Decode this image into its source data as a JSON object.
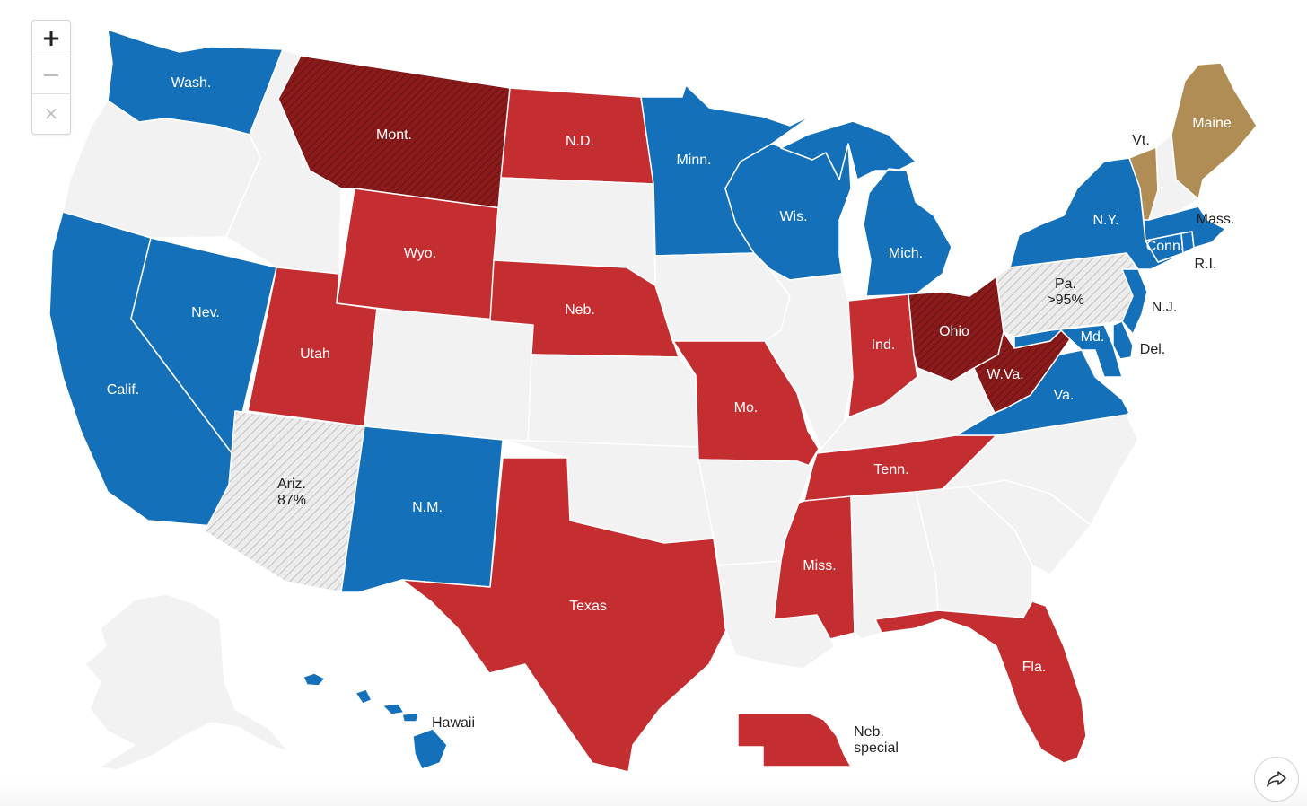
{
  "colors": {
    "dem": "#1570ba",
    "rep": "#c42e31",
    "rep_flip": "#8b1b1b",
    "ind": "#b08d55",
    "no_race": "#f2f2f2",
    "pending": "#dcdcdc",
    "label_light": "#ffffff",
    "label_dark": "#222222"
  },
  "controls": {
    "zoom_in": "+",
    "zoom_out": "−",
    "reset": "×",
    "share_icon": "share-arrow-icon"
  },
  "states": {
    "wa": {
      "label": "Wash.",
      "status": "dem"
    },
    "or": {
      "label": "",
      "status": "none"
    },
    "ca": {
      "label": "Calif.",
      "status": "dem"
    },
    "nv": {
      "label": "Nev.",
      "status": "dem"
    },
    "id": {
      "label": "",
      "status": "none"
    },
    "mt": {
      "label": "Mont.",
      "status": "rep_flip"
    },
    "wy": {
      "label": "Wyo.",
      "status": "rep"
    },
    "ut": {
      "label": "Utah",
      "status": "rep"
    },
    "az": {
      "label": "Ariz.",
      "status": "pending",
      "reporting": "87%"
    },
    "nm": {
      "label": "N.M.",
      "status": "dem"
    },
    "co": {
      "label": "",
      "status": "none"
    },
    "nd": {
      "label": "N.D.",
      "status": "rep"
    },
    "sd": {
      "label": "",
      "status": "none"
    },
    "ne": {
      "label": "Neb.",
      "status": "rep"
    },
    "ks": {
      "label": "",
      "status": "none"
    },
    "ok": {
      "label": "",
      "status": "none"
    },
    "tx": {
      "label": "Texas",
      "status": "rep"
    },
    "mn": {
      "label": "Minn.",
      "status": "dem"
    },
    "ia": {
      "label": "",
      "status": "none"
    },
    "mo": {
      "label": "Mo.",
      "status": "rep"
    },
    "ar": {
      "label": "",
      "status": "none"
    },
    "la": {
      "label": "",
      "status": "none"
    },
    "wi": {
      "label": "Wis.",
      "status": "dem"
    },
    "il": {
      "label": "",
      "status": "none"
    },
    "mi": {
      "label": "Mich.",
      "status": "dem"
    },
    "in": {
      "label": "Ind.",
      "status": "rep"
    },
    "oh": {
      "label": "Ohio",
      "status": "rep_flip"
    },
    "ky": {
      "label": "",
      "status": "none"
    },
    "tn": {
      "label": "Tenn.",
      "status": "rep"
    },
    "ms": {
      "label": "Miss.",
      "status": "rep"
    },
    "al": {
      "label": "",
      "status": "none"
    },
    "ga": {
      "label": "",
      "status": "none"
    },
    "fl": {
      "label": "Fla.",
      "status": "rep"
    },
    "sc": {
      "label": "",
      "status": "none"
    },
    "nc": {
      "label": "",
      "status": "none"
    },
    "va": {
      "label": "Va.",
      "status": "dem"
    },
    "wv": {
      "label": "W.Va.",
      "status": "rep_flip"
    },
    "md": {
      "label": "Md.",
      "status": "dem"
    },
    "de": {
      "label": "Del.",
      "status": "dem"
    },
    "pa": {
      "label": "Pa.",
      "status": "pending",
      "reporting": ">95%"
    },
    "nj": {
      "label": "N.J.",
      "status": "dem"
    },
    "ny": {
      "label": "N.Y.",
      "status": "dem"
    },
    "ct": {
      "label": "Conn.",
      "status": "dem"
    },
    "ri": {
      "label": "R.I.",
      "status": "dem"
    },
    "ma": {
      "label": "Mass.",
      "status": "dem"
    },
    "vt": {
      "label": "Vt.",
      "status": "ind"
    },
    "nh": {
      "label": "",
      "status": "none"
    },
    "me": {
      "label": "Maine",
      "status": "ind"
    },
    "ak": {
      "label": "",
      "status": "none"
    },
    "hi": {
      "label": "Hawaii",
      "status": "dem"
    },
    "ne_special": {
      "label": "Neb.\nspecial",
      "status": "rep",
      "line1": "Neb.",
      "line2": "special"
    }
  }
}
